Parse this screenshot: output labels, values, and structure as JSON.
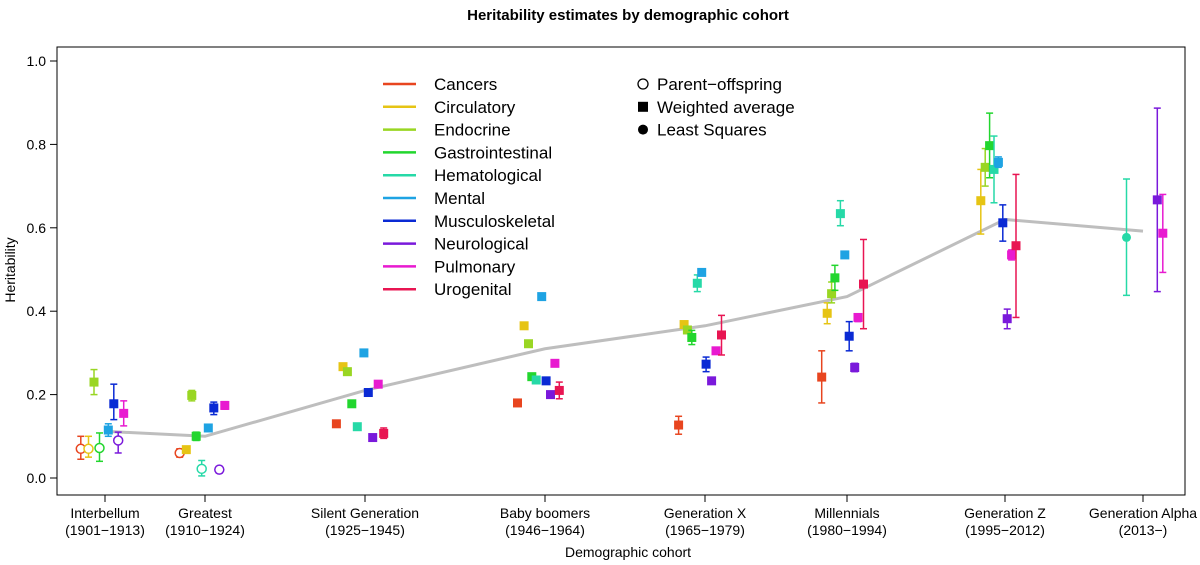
{
  "chart_data": {
    "type": "scatter",
    "title": "Heritability estimates by demographic cohort",
    "xlabel": "Demographic cohort",
    "ylabel": "Heritability",
    "ylim": [
      0,
      1.0
    ],
    "yticks": [
      "0.0",
      "0.2",
      "0.4",
      "0.6",
      "0.8",
      "1.0"
    ],
    "grid": false,
    "categories": [
      {
        "name": "Interbellum",
        "years": "(1901−1913)"
      },
      {
        "name": "Greatest",
        "years": "(1910−1924)"
      },
      {
        "name": "Silent Generation",
        "years": "(1925−1945)"
      },
      {
        "name": "Baby boomers",
        "years": "(1946−1964)"
      },
      {
        "name": "Generation X",
        "years": "(1965−1979)"
      },
      {
        "name": "Millennials",
        "years": "(1980−1994)"
      },
      {
        "name": "Generation Z",
        "years": "(1995−2012)"
      },
      {
        "name": "Generation Alpha",
        "years": "(2013−)"
      }
    ],
    "trend_line": {
      "color": "#bebebe",
      "values": [
        0.112,
        0.1,
        0.21,
        0.31,
        0.365,
        0.435,
        0.62,
        0.592
      ]
    },
    "series": [
      {
        "name": "Cancers",
        "color": "#e8451f"
      },
      {
        "name": "Circulatory",
        "color": "#e6c414"
      },
      {
        "name": "Endocrine",
        "color": "#99d623"
      },
      {
        "name": "Gastrointestinal",
        "color": "#22d62e"
      },
      {
        "name": "Hematological",
        "color": "#26d9a7"
      },
      {
        "name": "Mental",
        "color": "#1ea3e3"
      },
      {
        "name": "Musculoskeletal",
        "color": "#0a2ad4"
      },
      {
        "name": "Neurological",
        "color": "#7a19db"
      },
      {
        "name": "Pulmonary",
        "color": "#e81ad0"
      },
      {
        "name": "Urogenital",
        "color": "#e81552"
      }
    ],
    "markers": [
      {
        "shape": "circle-open",
        "label": "Parent−offspring"
      },
      {
        "shape": "square",
        "label": "Weighted average"
      },
      {
        "shape": "circle",
        "label": "Least Squares"
      }
    ],
    "legend_placement": "top-left",
    "points": [
      {
        "cohort": 0,
        "series": 0,
        "x_off": -0.22,
        "y": 0.07,
        "lo": 0.045,
        "hi": 0.1,
        "shape": "circle-open"
      },
      {
        "cohort": 0,
        "series": 1,
        "x_off": -0.15,
        "y": 0.07,
        "lo": 0.05,
        "hi": 0.1,
        "shape": "circle-open"
      },
      {
        "cohort": 0,
        "series": 2,
        "x_off": -0.1,
        "y": 0.23,
        "lo": 0.2,
        "hi": 0.26,
        "shape": "square"
      },
      {
        "cohort": 0,
        "series": 3,
        "x_off": -0.05,
        "y": 0.072,
        "lo": 0.04,
        "hi": 0.108,
        "shape": "circle-open"
      },
      {
        "cohort": 0,
        "series": 5,
        "x_off": 0.03,
        "y": 0.115,
        "lo": 0.1,
        "hi": 0.13,
        "shape": "square"
      },
      {
        "cohort": 0,
        "series": 6,
        "x_off": 0.08,
        "y": 0.178,
        "lo": 0.14,
        "hi": 0.225,
        "shape": "square"
      },
      {
        "cohort": 0,
        "series": 7,
        "x_off": 0.12,
        "y": 0.09,
        "lo": 0.06,
        "hi": 0.11,
        "shape": "circle-open"
      },
      {
        "cohort": 0,
        "series": 8,
        "x_off": 0.17,
        "y": 0.155,
        "lo": 0.125,
        "hi": 0.185,
        "shape": "square"
      },
      {
        "cohort": 1,
        "series": 0,
        "x_off": -0.23,
        "y": 0.06,
        "lo": 0.05,
        "hi": 0.07,
        "shape": "circle-open"
      },
      {
        "cohort": 1,
        "series": 1,
        "x_off": -0.17,
        "y": 0.068,
        "lo": 0.06,
        "hi": 0.076,
        "shape": "square"
      },
      {
        "cohort": 1,
        "series": 2,
        "x_off": -0.12,
        "y": 0.198,
        "lo": 0.185,
        "hi": 0.21,
        "shape": "square"
      },
      {
        "cohort": 1,
        "series": 3,
        "x_off": -0.08,
        "y": 0.1,
        "lo": 0.09,
        "hi": 0.11,
        "shape": "square"
      },
      {
        "cohort": 1,
        "series": 4,
        "x_off": -0.03,
        "y": 0.022,
        "lo": 0.005,
        "hi": 0.042,
        "shape": "circle-open"
      },
      {
        "cohort": 1,
        "series": 5,
        "x_off": 0.03,
        "y": 0.12,
        "lo": 0.112,
        "hi": 0.128,
        "shape": "square"
      },
      {
        "cohort": 1,
        "series": 6,
        "x_off": 0.08,
        "y": 0.168,
        "lo": 0.152,
        "hi": 0.182,
        "shape": "square"
      },
      {
        "cohort": 1,
        "series": 7,
        "x_off": 0.13,
        "y": 0.02,
        "lo": 0.012,
        "hi": 0.028,
        "shape": "circle-open"
      },
      {
        "cohort": 1,
        "series": 8,
        "x_off": 0.18,
        "y": 0.174,
        "lo": 0.165,
        "hi": 0.183,
        "shape": "square"
      },
      {
        "cohort": 2,
        "series": 0,
        "x_off": -0.26,
        "y": 0.13,
        "shape": "square"
      },
      {
        "cohort": 2,
        "series": 1,
        "x_off": -0.2,
        "y": 0.267,
        "shape": "square"
      },
      {
        "cohort": 2,
        "series": 2,
        "x_off": -0.16,
        "y": 0.255,
        "shape": "square"
      },
      {
        "cohort": 2,
        "series": 3,
        "x_off": -0.12,
        "y": 0.178,
        "shape": "square"
      },
      {
        "cohort": 2,
        "series": 4,
        "x_off": -0.07,
        "y": 0.123,
        "shape": "square"
      },
      {
        "cohort": 2,
        "series": 5,
        "x_off": -0.01,
        "y": 0.3,
        "shape": "square"
      },
      {
        "cohort": 2,
        "series": 6,
        "x_off": 0.03,
        "y": 0.205,
        "shape": "square"
      },
      {
        "cohort": 2,
        "series": 7,
        "x_off": 0.07,
        "y": 0.097,
        "shape": "square"
      },
      {
        "cohort": 2,
        "series": 8,
        "x_off": 0.12,
        "y": 0.225,
        "shape": "square"
      },
      {
        "cohort": 2,
        "series": 9,
        "x_off": 0.17,
        "y": 0.107,
        "lo": 0.095,
        "hi": 0.12,
        "shape": "square"
      },
      {
        "cohort": 3,
        "series": 0,
        "x_off": -0.25,
        "y": 0.18,
        "shape": "square"
      },
      {
        "cohort": 3,
        "series": 1,
        "x_off": -0.19,
        "y": 0.365,
        "shape": "square"
      },
      {
        "cohort": 3,
        "series": 2,
        "x_off": -0.15,
        "y": 0.322,
        "shape": "square"
      },
      {
        "cohort": 3,
        "series": 3,
        "x_off": -0.12,
        "y": 0.243,
        "shape": "square"
      },
      {
        "cohort": 3,
        "series": 4,
        "x_off": -0.08,
        "y": 0.235,
        "shape": "square"
      },
      {
        "cohort": 3,
        "series": 5,
        "x_off": -0.03,
        "y": 0.435,
        "shape": "square"
      },
      {
        "cohort": 3,
        "series": 6,
        "x_off": 0.01,
        "y": 0.233,
        "shape": "square"
      },
      {
        "cohort": 3,
        "series": 7,
        "x_off": 0.05,
        "y": 0.2,
        "shape": "square"
      },
      {
        "cohort": 3,
        "series": 8,
        "x_off": 0.09,
        "y": 0.275,
        "shape": "square"
      },
      {
        "cohort": 3,
        "series": 9,
        "x_off": 0.13,
        "y": 0.21,
        "lo": 0.19,
        "hi": 0.23,
        "shape": "square"
      },
      {
        "cohort": 4,
        "series": 0,
        "x_off": -0.24,
        "y": 0.127,
        "lo": 0.105,
        "hi": 0.148,
        "shape": "square"
      },
      {
        "cohort": 4,
        "series": 1,
        "x_off": -0.19,
        "y": 0.368,
        "shape": "square"
      },
      {
        "cohort": 4,
        "series": 2,
        "x_off": -0.16,
        "y": 0.355,
        "shape": "square"
      },
      {
        "cohort": 4,
        "series": 3,
        "x_off": -0.12,
        "y": 0.337,
        "lo": 0.32,
        "hi": 0.354,
        "shape": "square"
      },
      {
        "cohort": 4,
        "series": 4,
        "x_off": -0.07,
        "y": 0.467,
        "lo": 0.447,
        "hi": 0.487,
        "shape": "square"
      },
      {
        "cohort": 4,
        "series": 5,
        "x_off": -0.03,
        "y": 0.493,
        "shape": "square"
      },
      {
        "cohort": 4,
        "series": 6,
        "x_off": 0.01,
        "y": 0.273,
        "lo": 0.255,
        "hi": 0.29,
        "shape": "square"
      },
      {
        "cohort": 4,
        "series": 7,
        "x_off": 0.06,
        "y": 0.233,
        "shape": "square"
      },
      {
        "cohort": 4,
        "series": 8,
        "x_off": 0.1,
        "y": 0.305,
        "shape": "square"
      },
      {
        "cohort": 4,
        "series": 9,
        "x_off": 0.15,
        "y": 0.343,
        "lo": 0.295,
        "hi": 0.39,
        "shape": "square"
      },
      {
        "cohort": 5,
        "series": 0,
        "x_off": -0.23,
        "y": 0.242,
        "lo": 0.18,
        "hi": 0.305,
        "shape": "square"
      },
      {
        "cohort": 5,
        "series": 1,
        "x_off": -0.18,
        "y": 0.395,
        "lo": 0.37,
        "hi": 0.42,
        "shape": "square"
      },
      {
        "cohort": 5,
        "series": 2,
        "x_off": -0.14,
        "y": 0.442,
        "lo": 0.42,
        "hi": 0.47,
        "shape": "square"
      },
      {
        "cohort": 5,
        "series": 3,
        "x_off": -0.11,
        "y": 0.48,
        "lo": 0.45,
        "hi": 0.51,
        "shape": "square"
      },
      {
        "cohort": 5,
        "series": 4,
        "x_off": -0.06,
        "y": 0.634,
        "lo": 0.605,
        "hi": 0.665,
        "shape": "square"
      },
      {
        "cohort": 5,
        "series": 5,
        "x_off": -0.02,
        "y": 0.535,
        "shape": "square"
      },
      {
        "cohort": 5,
        "series": 6,
        "x_off": 0.02,
        "y": 0.34,
        "lo": 0.305,
        "hi": 0.375,
        "shape": "square"
      },
      {
        "cohort": 5,
        "series": 7,
        "x_off": 0.07,
        "y": 0.265,
        "lo": 0.255,
        "hi": 0.275,
        "shape": "square"
      },
      {
        "cohort": 5,
        "series": 8,
        "x_off": 0.1,
        "y": 0.385,
        "lo": 0.375,
        "hi": 0.393,
        "shape": "square"
      },
      {
        "cohort": 5,
        "series": 9,
        "x_off": 0.15,
        "y": 0.465,
        "lo": 0.358,
        "hi": 0.572,
        "shape": "square"
      },
      {
        "cohort": 6,
        "series": 1,
        "x_off": -0.22,
        "y": 0.665,
        "lo": 0.585,
        "hi": 0.74,
        "shape": "square"
      },
      {
        "cohort": 6,
        "series": 2,
        "x_off": -0.18,
        "y": 0.745,
        "lo": 0.7,
        "hi": 0.79,
        "shape": "square"
      },
      {
        "cohort": 6,
        "series": 3,
        "x_off": -0.14,
        "y": 0.797,
        "lo": 0.72,
        "hi": 0.875,
        "shape": "square"
      },
      {
        "cohort": 6,
        "series": 4,
        "x_off": -0.1,
        "y": 0.74,
        "lo": 0.66,
        "hi": 0.82,
        "shape": "square"
      },
      {
        "cohort": 6,
        "series": 5,
        "x_off": -0.06,
        "y": 0.757,
        "lo": 0.745,
        "hi": 0.77,
        "shape": "square"
      },
      {
        "cohort": 6,
        "series": 6,
        "x_off": -0.02,
        "y": 0.612,
        "lo": 0.568,
        "hi": 0.655,
        "shape": "square"
      },
      {
        "cohort": 6,
        "series": 7,
        "x_off": 0.02,
        "y": 0.382,
        "lo": 0.358,
        "hi": 0.405,
        "shape": "square"
      },
      {
        "cohort": 6,
        "series": 8,
        "x_off": 0.06,
        "y": 0.535,
        "lo": 0.523,
        "hi": 0.547,
        "shape": "square"
      },
      {
        "cohort": 6,
        "series": 9,
        "x_off": 0.1,
        "y": 0.557,
        "lo": 0.385,
        "hi": 0.728,
        "shape": "square"
      },
      {
        "cohort": 7,
        "series": 4,
        "x_off": -0.15,
        "y": 0.577,
        "lo": 0.438,
        "hi": 0.717,
        "shape": "circle"
      },
      {
        "cohort": 7,
        "series": 7,
        "x_off": 0.13,
        "y": 0.667,
        "lo": 0.447,
        "hi": 0.887,
        "shape": "square"
      },
      {
        "cohort": 7,
        "series": 8,
        "x_off": 0.18,
        "y": 0.587,
        "lo": 0.493,
        "hi": 0.68,
        "shape": "square"
      }
    ]
  }
}
